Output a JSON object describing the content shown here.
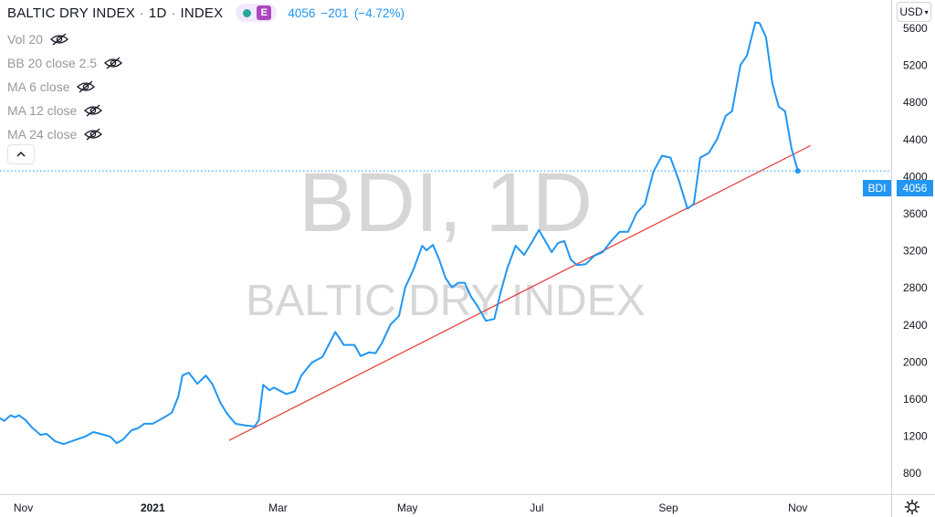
{
  "header": {
    "symbol": "BALTIC DRY INDEX",
    "sep1": "·",
    "interval": "1D",
    "sep2": "·",
    "exchange": "INDEX",
    "badge": "E",
    "last": "4056",
    "change": "−201",
    "change_pct": "(−4.72%)"
  },
  "indicators": [
    {
      "label": "Vol 20"
    },
    {
      "label": "BB 20 close 2.5"
    },
    {
      "label": "MA 6 close"
    },
    {
      "label": "MA 12 close"
    },
    {
      "label": "MA 24 close"
    }
  ],
  "currency_button": "USD",
  "watermark": {
    "line1": "BDI, 1D",
    "line2": "BALTIC DRY INDEX"
  },
  "price_tag": {
    "name": "BDI",
    "value": "4056"
  },
  "colors": {
    "series": "#2196f3",
    "trendline": "#e53935",
    "axis_text": "#131722",
    "watermark": "#d3d3d3"
  },
  "icons": {
    "visibility": "eye-off-icon",
    "collapse": "chevron-up-icon",
    "settings": "gear-icon"
  },
  "chart_data": {
    "type": "line",
    "title": "BALTIC DRY INDEX",
    "ylim": [
      570,
      5900
    ],
    "y_ticks": [
      800,
      1200,
      1600,
      2000,
      2400,
      2800,
      3200,
      3600,
      4000,
      4400,
      4800,
      5200,
      5600
    ],
    "y_tick_labels": [
      "800",
      "1200",
      "1600",
      "2000",
      "2400",
      "2800",
      "3200",
      "3600",
      "4000",
      "4400",
      "4800",
      "5200",
      "5600"
    ],
    "x_range": [
      "2020-10-21",
      "2021-12-15"
    ],
    "x_ticks": [
      {
        "label": "Nov",
        "date": "2020-11-01",
        "bold": false
      },
      {
        "label": "2021",
        "date": "2021-01-01",
        "bold": true
      },
      {
        "label": "Mar",
        "date": "2021-03-01",
        "bold": false
      },
      {
        "label": "May",
        "date": "2021-05-01",
        "bold": false
      },
      {
        "label": "Jul",
        "date": "2021-07-01",
        "bold": false
      },
      {
        "label": "Sep",
        "date": "2021-09-01",
        "bold": false
      },
      {
        "label": "Nov",
        "date": "2021-11-01",
        "bold": false
      }
    ],
    "series": [
      {
        "name": "BDI",
        "points": [
          [
            "2020-10-21",
            1390
          ],
          [
            "2020-10-23",
            1360
          ],
          [
            "2020-10-26",
            1420
          ],
          [
            "2020-10-28",
            1400
          ],
          [
            "2020-10-30",
            1420
          ],
          [
            "2020-11-02",
            1370
          ],
          [
            "2020-11-05",
            1290
          ],
          [
            "2020-11-09",
            1210
          ],
          [
            "2020-11-12",
            1220
          ],
          [
            "2020-11-16",
            1140
          ],
          [
            "2020-11-20",
            1110
          ],
          [
            "2020-11-25",
            1150
          ],
          [
            "2020-11-30",
            1190
          ],
          [
            "2020-12-04",
            1240
          ],
          [
            "2020-12-09",
            1210
          ],
          [
            "2020-12-12",
            1190
          ],
          [
            "2020-12-15",
            1120
          ],
          [
            "2020-12-18",
            1160
          ],
          [
            "2020-12-22",
            1260
          ],
          [
            "2020-12-25",
            1280
          ],
          [
            "2020-12-28",
            1330
          ],
          [
            "2021-01-01",
            1330
          ],
          [
            "2021-01-05",
            1380
          ],
          [
            "2021-01-08",
            1420
          ],
          [
            "2021-01-10",
            1450
          ],
          [
            "2021-01-13",
            1620
          ],
          [
            "2021-01-15",
            1850
          ],
          [
            "2021-01-18",
            1880
          ],
          [
            "2021-01-22",
            1760
          ],
          [
            "2021-01-26",
            1850
          ],
          [
            "2021-01-29",
            1760
          ],
          [
            "2021-02-02",
            1550
          ],
          [
            "2021-02-05",
            1440
          ],
          [
            "2021-02-09",
            1330
          ],
          [
            "2021-02-14",
            1310
          ],
          [
            "2021-02-18",
            1300
          ],
          [
            "2021-02-20",
            1370
          ],
          [
            "2021-02-22",
            1750
          ],
          [
            "2021-02-25",
            1690
          ],
          [
            "2021-02-27",
            1720
          ],
          [
            "2021-03-05",
            1650
          ],
          [
            "2021-03-09",
            1680
          ],
          [
            "2021-03-12",
            1850
          ],
          [
            "2021-03-17",
            1990
          ],
          [
            "2021-03-22",
            2050
          ],
          [
            "2021-03-28",
            2320
          ],
          [
            "2021-04-01",
            2180
          ],
          [
            "2021-04-06",
            2180
          ],
          [
            "2021-04-09",
            2060
          ],
          [
            "2021-04-13",
            2100
          ],
          [
            "2021-04-16",
            2090
          ],
          [
            "2021-04-19",
            2200
          ],
          [
            "2021-04-23",
            2400
          ],
          [
            "2021-04-27",
            2490
          ],
          [
            "2021-04-30",
            2800
          ],
          [
            "2021-05-04",
            3000
          ],
          [
            "2021-05-08",
            3250
          ],
          [
            "2021-05-10",
            3200
          ],
          [
            "2021-05-13",
            3260
          ],
          [
            "2021-05-16",
            3100
          ],
          [
            "2021-05-19",
            2900
          ],
          [
            "2021-05-22",
            2800
          ],
          [
            "2021-05-25",
            2850
          ],
          [
            "2021-05-28",
            2850
          ],
          [
            "2021-05-31",
            2700
          ],
          [
            "2021-06-03",
            2600
          ],
          [
            "2021-06-07",
            2440
          ],
          [
            "2021-06-11",
            2460
          ],
          [
            "2021-06-14",
            2750
          ],
          [
            "2021-06-17",
            3000
          ],
          [
            "2021-06-21",
            3250
          ],
          [
            "2021-06-25",
            3150
          ],
          [
            "2021-06-29",
            3300
          ],
          [
            "2021-07-02",
            3420
          ],
          [
            "2021-07-05",
            3300
          ],
          [
            "2021-07-08",
            3180
          ],
          [
            "2021-07-11",
            3280
          ],
          [
            "2021-07-14",
            3300
          ],
          [
            "2021-07-17",
            3100
          ],
          [
            "2021-07-20",
            3040
          ],
          [
            "2021-07-24",
            3050
          ],
          [
            "2021-07-28",
            3140
          ],
          [
            "2021-08-01",
            3180
          ],
          [
            "2021-08-05",
            3300
          ],
          [
            "2021-08-09",
            3400
          ],
          [
            "2021-08-13",
            3400
          ],
          [
            "2021-08-17",
            3600
          ],
          [
            "2021-08-21",
            3700
          ],
          [
            "2021-08-25",
            4050
          ],
          [
            "2021-08-29",
            4220
          ],
          [
            "2021-09-02",
            4200
          ],
          [
            "2021-09-06",
            3950
          ],
          [
            "2021-09-10",
            3650
          ],
          [
            "2021-09-13",
            3700
          ],
          [
            "2021-09-16",
            4200
          ],
          [
            "2021-09-20",
            4250
          ],
          [
            "2021-09-24",
            4400
          ],
          [
            "2021-09-28",
            4650
          ],
          [
            "2021-10-01",
            4700
          ],
          [
            "2021-10-05",
            5200
          ],
          [
            "2021-10-08",
            5300
          ],
          [
            "2021-10-12",
            5660
          ],
          [
            "2021-10-14",
            5650
          ],
          [
            "2021-10-17",
            5500
          ],
          [
            "2021-10-20",
            5000
          ],
          [
            "2021-10-23",
            4750
          ],
          [
            "2021-10-26",
            4700
          ],
          [
            "2021-10-29",
            4300
          ],
          [
            "2021-11-01",
            4056
          ]
        ]
      }
    ],
    "trendline": [
      [
        "2021-02-06",
        1150
      ],
      [
        "2021-11-07",
        4330
      ]
    ],
    "last_value": 4056,
    "grid": false,
    "legend": "top-left"
  }
}
